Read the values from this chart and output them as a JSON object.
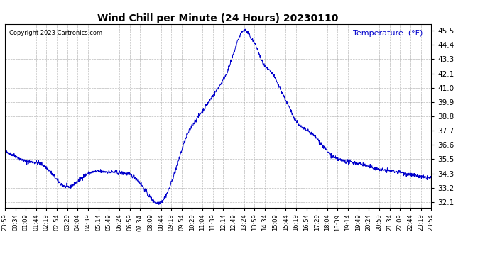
{
  "title": "Wind Chill per Minute (24 Hours) 20230110",
  "temp_label": "Temperature  (°F)",
  "copyright_text": "Copyright 2023 Cartronics.com",
  "line_color": "#0000cc",
  "temp_label_color": "#0000cc",
  "background_color": "#ffffff",
  "grid_color": "#aaaaaa",
  "ylim": [
    31.7,
    46.0
  ],
  "yticks": [
    32.1,
    33.2,
    34.3,
    35.5,
    36.6,
    37.7,
    38.8,
    39.9,
    41.0,
    42.1,
    43.3,
    44.4,
    45.5
  ],
  "x_labels": [
    "23:59",
    "00:34",
    "01:09",
    "01:44",
    "02:19",
    "02:54",
    "03:29",
    "04:04",
    "04:39",
    "05:14",
    "05:49",
    "06:24",
    "06:59",
    "07:34",
    "08:09",
    "08:44",
    "09:19",
    "09:54",
    "10:29",
    "11:04",
    "11:39",
    "12:14",
    "12:49",
    "13:24",
    "13:59",
    "14:34",
    "15:09",
    "15:44",
    "16:19",
    "16:54",
    "17:29",
    "18:04",
    "18:39",
    "19:14",
    "19:49",
    "20:24",
    "20:59",
    "21:34",
    "22:09",
    "22:44",
    "23:19",
    "23:54"
  ],
  "n_points": 1440,
  "keypoints_t": [
    0,
    35,
    70,
    130,
    210,
    270,
    330,
    390,
    450,
    525,
    560,
    610,
    660,
    720,
    760,
    810,
    820,
    835,
    850,
    870,
    900,
    925,
    960,
    1000,
    1020,
    1060,
    1100,
    1150,
    1200,
    1260,
    1320,
    1380,
    1440
  ],
  "keypoints_v": [
    36.0,
    35.7,
    35.3,
    35.0,
    33.3,
    34.2,
    34.5,
    34.4,
    33.8,
    32.1,
    33.5,
    37.0,
    39.0,
    41.0,
    42.8,
    45.5,
    45.3,
    44.8,
    44.2,
    43.0,
    42.2,
    41.2,
    39.5,
    38.0,
    37.7,
    36.9,
    35.8,
    35.3,
    35.1,
    34.7,
    34.5,
    34.2,
    34.0
  ]
}
